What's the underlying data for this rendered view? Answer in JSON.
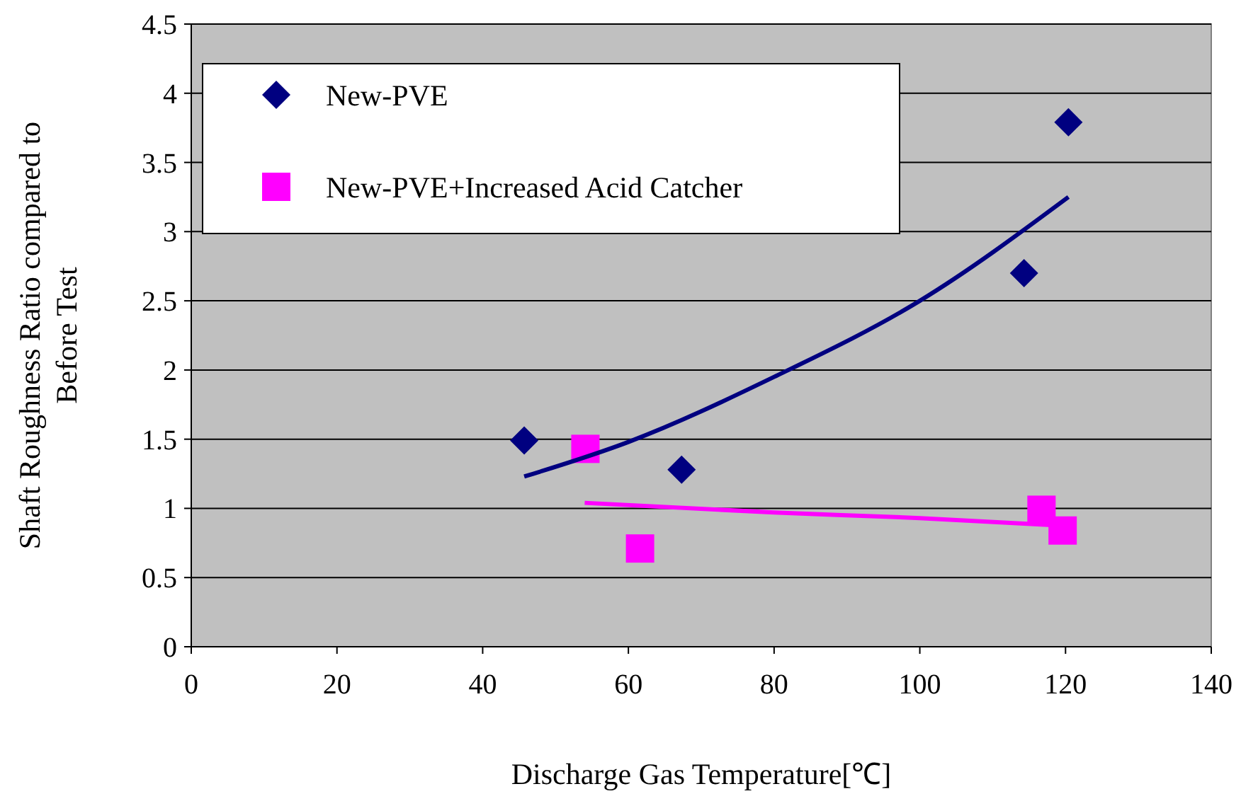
{
  "chart_data": {
    "type": "scatter",
    "xlabel": "Discharge Gas Temperature[℃]",
    "ylabel": "Shaft Roughness Ratio compared to\nBefore  Test",
    "xlim": [
      0,
      140
    ],
    "xticks": [
      0,
      20,
      40,
      60,
      80,
      100,
      120,
      140
    ],
    "ylim": [
      0,
      4.5
    ],
    "yticks": [
      0,
      0.5,
      1,
      1.5,
      2,
      2.5,
      3,
      3.5,
      4,
      4.5
    ],
    "grid": "y",
    "legend": "top left",
    "series": [
      {
        "name": "New-PVE",
        "color": "#000080",
        "marker": "diamond",
        "x": [
          45.7,
          67.3,
          114.3,
          120.4
        ],
        "values": [
          1.49,
          1.28,
          2.7,
          3.79
        ]
      },
      {
        "name": "New-PVE+Increased Acid Catcher",
        "color": "#ff00ff",
        "marker": "square",
        "x": [
          54.1,
          61.6,
          116.7,
          119.6
        ],
        "values": [
          1.43,
          0.71,
          0.99,
          0.84
        ]
      },
      {
        "type": "line",
        "color": "#000080",
        "x": [
          45.7,
          60,
          80,
          100,
          120.4
        ],
        "values": [
          1.23,
          1.48,
          1.95,
          2.5,
          3.25
        ]
      },
      {
        "type": "line",
        "color": "#ff00ff",
        "x": [
          54,
          80,
          100,
          118
        ],
        "values": [
          1.04,
          0.97,
          0.93,
          0.88
        ]
      }
    ]
  }
}
